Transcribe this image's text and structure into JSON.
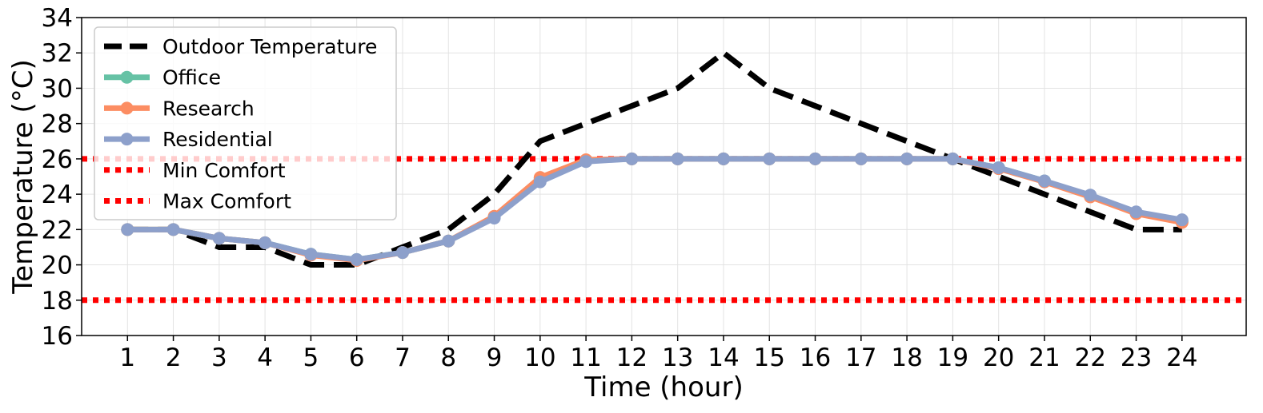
{
  "chart_data": {
    "type": "line",
    "xlabel": "Time (hour)",
    "ylabel": "Temperature (°C)",
    "x": [
      1,
      2,
      3,
      4,
      5,
      6,
      7,
      8,
      9,
      10,
      11,
      12,
      13,
      14,
      15,
      16,
      17,
      18,
      19,
      20,
      21,
      22,
      23,
      24
    ],
    "xticks": [
      "1",
      "2",
      "3",
      "4",
      "5",
      "6",
      "7",
      "8",
      "9",
      "10",
      "11",
      "12",
      "13",
      "14",
      "15",
      "16",
      "17",
      "18",
      "19",
      "20",
      "21",
      "22",
      "23",
      "24"
    ],
    "ylim": [
      16,
      34
    ],
    "yticks": [
      "16",
      "18",
      "20",
      "22",
      "24",
      "26",
      "28",
      "30",
      "32",
      "34"
    ],
    "grid": true,
    "legend_position": "top-left",
    "series": [
      {
        "name": "Outdoor Temperature",
        "color": "#000000",
        "style": "dashed",
        "values": [
          22,
          22,
          21,
          21,
          20,
          20,
          21,
          22,
          24,
          27,
          28,
          29,
          30,
          32,
          30,
          29,
          28,
          27,
          26,
          25,
          24,
          23,
          22,
          22
        ]
      },
      {
        "name": "Office",
        "color": "#66c2a5",
        "style": "solid-marker",
        "values": [
          22,
          22,
          21.5,
          21.25,
          20.6,
          20.3,
          20.7,
          21.35,
          22.7,
          24.9,
          25.9,
          26,
          26,
          26,
          26,
          26,
          26,
          26,
          26,
          25.5,
          24.75,
          23.9,
          22.95,
          22.45
        ]
      },
      {
        "name": "Research",
        "color": "#fc8d62",
        "style": "solid-marker",
        "values": [
          22,
          22,
          21.5,
          21.25,
          20.55,
          20.25,
          20.7,
          21.35,
          22.75,
          24.95,
          25.95,
          26,
          26,
          26,
          26,
          26,
          26,
          26,
          26,
          25.45,
          24.7,
          23.85,
          22.9,
          22.4
        ]
      },
      {
        "name": "Residential",
        "color": "#8da0cb",
        "style": "solid-marker",
        "values": [
          22,
          22,
          21.5,
          21.25,
          20.6,
          20.3,
          20.7,
          21.35,
          22.65,
          24.7,
          25.85,
          26,
          26,
          26,
          26,
          26,
          26,
          26,
          26,
          25.5,
          24.75,
          23.95,
          23,
          22.55
        ]
      },
      {
        "name": "Min Comfort",
        "color": "#ff0000",
        "style": "dotted",
        "constant": 26
      },
      {
        "name": "Max Comfort",
        "color": "#ff0000",
        "style": "dotted",
        "constant": 18
      }
    ]
  }
}
